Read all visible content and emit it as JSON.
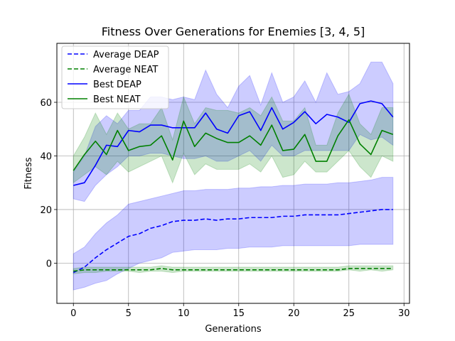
{
  "chart_data": {
    "type": "line",
    "title": "Fitness Over Generations for Enemies [3, 4, 5]",
    "xlabel": "Generations",
    "ylabel": "Fitness",
    "xlim": [
      -1.5,
      30.5
    ],
    "ylim": [
      -15,
      82
    ],
    "xticks": [
      0,
      5,
      10,
      15,
      20,
      25,
      30
    ],
    "yticks": [
      0,
      20,
      40,
      60
    ],
    "grid": true,
    "legend_position": "upper-left",
    "x": [
      0,
      1,
      2,
      3,
      4,
      5,
      6,
      7,
      8,
      9,
      10,
      11,
      12,
      13,
      14,
      15,
      16,
      17,
      18,
      19,
      20,
      21,
      22,
      23,
      24,
      25,
      26,
      27,
      28,
      29
    ],
    "series": [
      {
        "name": "Average DEAP",
        "color": "#0000ff",
        "dash": "dashed",
        "band_color": "#0000ff",
        "values": [
          -3.5,
          -1.5,
          2,
          5,
          7.5,
          10,
          11,
          13,
          14,
          15.5,
          16,
          16,
          16.5,
          16,
          16.5,
          16.5,
          17,
          17,
          17,
          17.5,
          17.5,
          18,
          18,
          18,
          18,
          18.5,
          19,
          19.5,
          20,
          20
        ],
        "lower": [
          -10,
          -9,
          -7.5,
          -6.5,
          -4,
          -2,
          0,
          1,
          2,
          4,
          4.5,
          5,
          5,
          5,
          5.5,
          5.5,
          6,
          6,
          6,
          6.5,
          6.5,
          6.5,
          6.5,
          6.5,
          6.5,
          6.5,
          7,
          7,
          7,
          7
        ],
        "upper": [
          3.5,
          6,
          11,
          15,
          18,
          22,
          23,
          24,
          25,
          26,
          27,
          27,
          27.5,
          27.5,
          27.5,
          28,
          28,
          28.5,
          28.5,
          29,
          29,
          29.5,
          29.5,
          29.5,
          30,
          30,
          30.5,
          31,
          32,
          32
        ]
      },
      {
        "name": "Average NEAT",
        "color": "#008000",
        "dash": "dashed",
        "band_color": "#008000",
        "values": [
          -3,
          -2.5,
          -2.5,
          -2.5,
          -2.5,
          -2.5,
          -2.5,
          -2.5,
          -2,
          -2.5,
          -2.5,
          -2.5,
          -2.5,
          -2.5,
          -2.5,
          -2.5,
          -2.5,
          -2.5,
          -2.5,
          -2.5,
          -2.5,
          -2.5,
          -2.5,
          -2.5,
          -2.5,
          -2,
          -2,
          -2,
          -2,
          -2
        ],
        "lower": [
          -4,
          -3.5,
          -3.5,
          -3,
          -3,
          -3,
          -3.5,
          -3,
          -3,
          -3.5,
          -3,
          -3,
          -3,
          -3,
          -3,
          -3,
          -3,
          -3,
          -3,
          -3,
          -3,
          -3,
          -3,
          -3,
          -3,
          -2.5,
          -3,
          -2.5,
          -3,
          -2.5
        ],
        "upper": [
          -2,
          -1.5,
          -1.5,
          -1.5,
          -1.5,
          -1.5,
          -1.5,
          -1.5,
          -1,
          -1.5,
          -1.5,
          -1.5,
          -1.5,
          -1.5,
          -1.5,
          -1.5,
          -1.5,
          -1.5,
          -1.5,
          -1.5,
          -1.5,
          -1.5,
          -1.5,
          -1.5,
          -1.5,
          -1,
          -1,
          -1,
          -1,
          -1
        ]
      },
      {
        "name": "Best DEAP",
        "color": "#0000ff",
        "dash": "solid",
        "band_color": "#0000ff",
        "values": [
          29,
          30,
          36.5,
          44,
          43.5,
          49.5,
          49,
          51.5,
          51.5,
          50.5,
          50.5,
          50.5,
          56,
          50,
          48.5,
          55,
          56.5,
          49.5,
          58,
          50,
          52.5,
          56.5,
          52,
          55.5,
          54.5,
          52.5,
          59.5,
          60.5,
          59.5,
          54.5
        ],
        "lower": [
          24,
          23,
          29,
          33,
          36,
          40,
          40,
          41,
          41,
          40,
          39,
          39,
          40,
          38,
          38,
          40,
          42,
          38,
          44,
          40,
          40,
          42,
          42,
          42,
          42,
          42,
          48,
          46,
          47,
          44
        ],
        "upper": [
          34,
          40,
          51,
          55,
          52,
          57,
          57,
          62,
          62,
          61,
          62,
          61,
          72,
          63,
          58,
          66,
          70,
          59,
          71,
          60,
          62,
          68,
          60,
          71,
          63,
          64,
          67,
          75,
          75,
          67
        ]
      },
      {
        "name": "Best NEAT",
        "color": "#008000",
        "dash": "solid",
        "band_color": "#008000",
        "values": [
          34.5,
          40.5,
          45.5,
          40.5,
          49.5,
          42,
          43.5,
          44,
          47.5,
          38.5,
          53,
          43.5,
          48.5,
          46.5,
          45,
          45,
          47.5,
          44,
          51.5,
          42,
          42.5,
          48,
          38,
          38,
          47.5,
          53.5,
          44.5,
          40.5,
          49.5,
          48
        ],
        "lower": [
          30,
          33,
          36,
          33,
          38,
          34,
          36,
          38,
          40,
          30,
          41,
          33,
          37,
          35,
          35,
          35,
          37,
          34,
          40,
          32,
          33,
          38,
          34,
          34,
          38,
          42,
          36,
          32,
          40,
          38
        ],
        "upper": [
          40,
          47,
          56,
          48,
          56,
          50,
          52,
          52,
          58,
          46,
          62,
          52,
          58,
          57,
          57,
          56,
          58,
          55,
          62,
          53,
          53,
          58,
          44,
          44,
          56,
          63,
          52,
          48,
          58,
          58
        ]
      }
    ]
  }
}
